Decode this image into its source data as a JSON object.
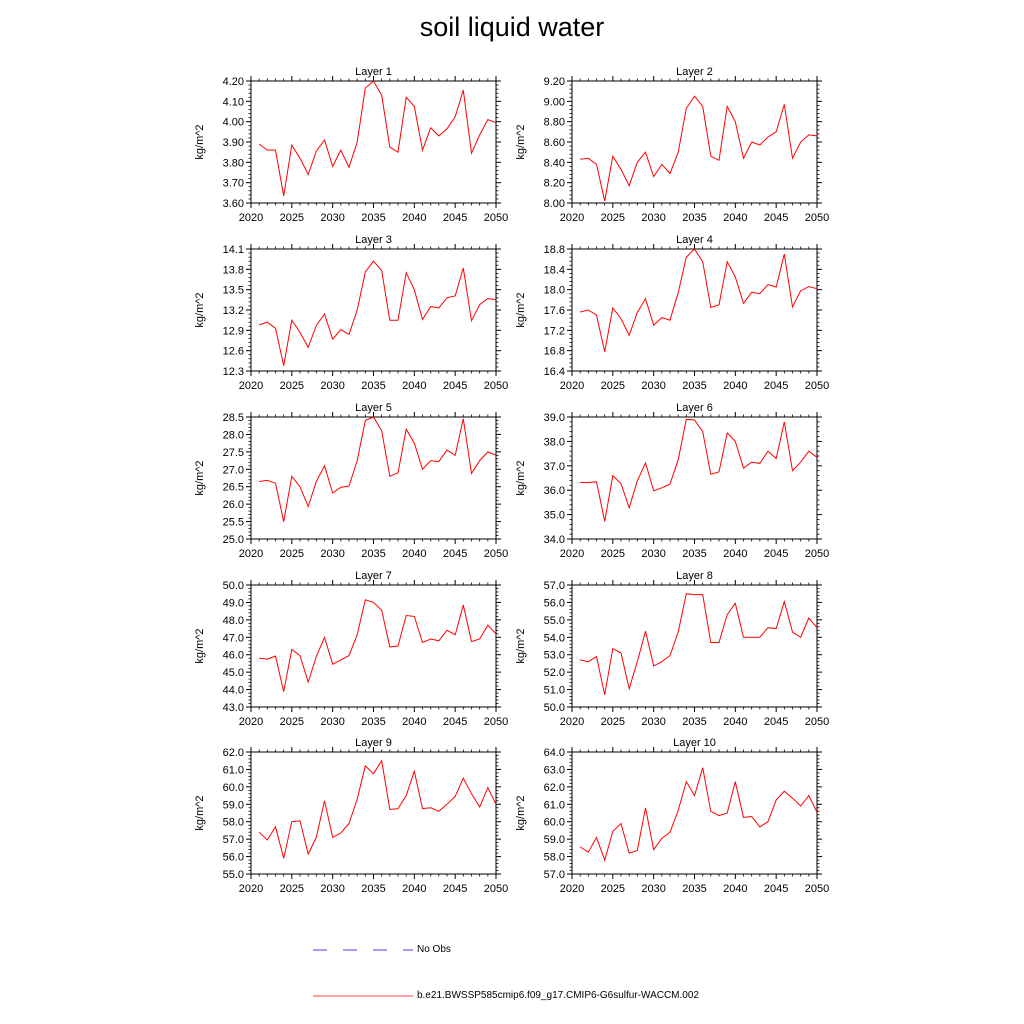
{
  "title": "soil liquid water",
  "legend": {
    "no_obs_label": "No Obs",
    "run_label": "b.e21.BWSSP585cmip6.f09_g17.CMIP6-G6sulfur-WACCM.002",
    "no_obs_color": "#0000ff",
    "run_color": "#ff0000"
  },
  "chart_data": [
    {
      "type": "line",
      "title": "Layer 1",
      "ylabel": "kg/m^2",
      "xlim": [
        2020,
        2050
      ],
      "ylim": [
        3.6,
        4.2
      ],
      "yticks": [
        "3.60",
        "3.70",
        "3.80",
        "3.90",
        "4.00",
        "4.10",
        "4.20"
      ],
      "xticks": [
        "2020",
        "2025",
        "2030",
        "2035",
        "2040",
        "2045",
        "2050"
      ],
      "x": [
        2021,
        2022,
        2023,
        2024,
        2025,
        2026,
        2027,
        2028,
        2029,
        2030,
        2031,
        2032,
        2033,
        2034,
        2035,
        2036,
        2037,
        2038,
        2039,
        2040,
        2041,
        2042,
        2043,
        2044,
        2045,
        2046,
        2047,
        2048,
        2049,
        2050
      ],
      "series": [
        {
          "values": [
            3.89,
            3.86,
            3.86,
            3.635,
            3.885,
            3.82,
            3.74,
            3.855,
            3.91,
            3.78,
            3.86,
            3.775,
            3.9,
            4.165,
            4.2,
            4.13,
            3.875,
            3.85,
            4.12,
            4.075,
            3.86,
            3.97,
            3.93,
            3.965,
            4.025,
            4.155,
            3.845,
            3.935,
            4.01,
            3.995
          ],
          "color": "#ff0000"
        }
      ]
    },
    {
      "type": "line",
      "title": "Layer 2",
      "ylabel": "kg/m^2",
      "xlim": [
        2020,
        2050
      ],
      "ylim": [
        8.0,
        9.2
      ],
      "yticks": [
        "8.00",
        "8.20",
        "8.40",
        "8.60",
        "8.80",
        "9.00",
        "9.20"
      ],
      "xticks": [
        "2020",
        "2025",
        "2030",
        "2035",
        "2040",
        "2045",
        "2050"
      ],
      "x": [
        2021,
        2022,
        2023,
        2024,
        2025,
        2026,
        2027,
        2028,
        2029,
        2030,
        2031,
        2032,
        2033,
        2034,
        2035,
        2036,
        2037,
        2038,
        2039,
        2040,
        2041,
        2042,
        2043,
        2044,
        2045,
        2046,
        2047,
        2048,
        2049,
        2050
      ],
      "series": [
        {
          "values": [
            8.43,
            8.44,
            8.38,
            8.02,
            8.46,
            8.33,
            8.17,
            8.4,
            8.5,
            8.26,
            8.38,
            8.29,
            8.5,
            8.93,
            9.05,
            8.95,
            8.46,
            8.42,
            8.95,
            8.8,
            8.44,
            8.6,
            8.57,
            8.65,
            8.7,
            8.97,
            8.44,
            8.6,
            8.67,
            8.66
          ],
          "color": "#ff0000"
        }
      ]
    },
    {
      "type": "line",
      "title": "Layer 3",
      "ylabel": "kg/m^2",
      "xlim": [
        2020,
        2050
      ],
      "ylim": [
        12.3,
        14.1
      ],
      "yticks": [
        "12.3",
        "12.6",
        "12.9",
        "13.2",
        "13.5",
        "13.8",
        "14.1"
      ],
      "xticks": [
        "2020",
        "2025",
        "2030",
        "2035",
        "2040",
        "2045",
        "2050"
      ],
      "x": [
        2021,
        2022,
        2023,
        2024,
        2025,
        2026,
        2027,
        2028,
        2029,
        2030,
        2031,
        2032,
        2033,
        2034,
        2035,
        2036,
        2037,
        2038,
        2039,
        2040,
        2041,
        2042,
        2043,
        2044,
        2045,
        2046,
        2047,
        2048,
        2049,
        2050
      ],
      "series": [
        {
          "values": [
            12.98,
            13.02,
            12.93,
            12.38,
            13.05,
            12.87,
            12.65,
            12.97,
            13.14,
            12.77,
            12.91,
            12.84,
            13.2,
            13.76,
            13.92,
            13.78,
            13.05,
            13.05,
            13.75,
            13.5,
            13.06,
            13.25,
            13.23,
            13.38,
            13.41,
            13.82,
            13.04,
            13.28,
            13.37,
            13.35
          ],
          "color": "#ff0000"
        }
      ]
    },
    {
      "type": "line",
      "title": "Layer 4",
      "ylabel": "kg/m^2",
      "xlim": [
        2020,
        2050
      ],
      "ylim": [
        16.4,
        18.8
      ],
      "yticks": [
        "16.4",
        "16.8",
        "17.2",
        "17.6",
        "18.0",
        "18.4",
        "18.8"
      ],
      "xticks": [
        "2020",
        "2025",
        "2030",
        "2035",
        "2040",
        "2045",
        "2050"
      ],
      "x": [
        2021,
        2022,
        2023,
        2024,
        2025,
        2026,
        2027,
        2028,
        2029,
        2030,
        2031,
        2032,
        2033,
        2034,
        2035,
        2036,
        2037,
        2038,
        2039,
        2040,
        2041,
        2042,
        2043,
        2044,
        2045,
        2046,
        2047,
        2048,
        2049,
        2050
      ],
      "series": [
        {
          "values": [
            17.56,
            17.6,
            17.5,
            16.78,
            17.64,
            17.43,
            17.1,
            17.55,
            17.82,
            17.3,
            17.45,
            17.4,
            17.94,
            18.64,
            18.8,
            18.55,
            17.65,
            17.7,
            18.55,
            18.25,
            17.73,
            17.95,
            17.92,
            18.1,
            18.05,
            18.7,
            17.66,
            17.98,
            18.06,
            18.02
          ],
          "color": "#ff0000"
        }
      ]
    },
    {
      "type": "line",
      "title": "Layer 5",
      "ylabel": "kg/m^2",
      "xlim": [
        2020,
        2050
      ],
      "ylim": [
        25.0,
        28.5
      ],
      "yticks": [
        "25.0",
        "25.5",
        "26.0",
        "26.5",
        "27.0",
        "27.5",
        "28.0",
        "28.5"
      ],
      "xticks": [
        "2020",
        "2025",
        "2030",
        "2035",
        "2040",
        "2045",
        "2050"
      ],
      "x": [
        2021,
        2022,
        2023,
        2024,
        2025,
        2026,
        2027,
        2028,
        2029,
        2030,
        2031,
        2032,
        2033,
        2034,
        2035,
        2036,
        2037,
        2038,
        2039,
        2040,
        2041,
        2042,
        2043,
        2044,
        2045,
        2046,
        2047,
        2048,
        2049,
        2050
      ],
      "series": [
        {
          "values": [
            26.65,
            26.68,
            26.6,
            25.5,
            26.8,
            26.5,
            25.93,
            26.65,
            27.1,
            26.32,
            26.48,
            26.52,
            27.25,
            28.4,
            28.5,
            28.1,
            26.8,
            26.9,
            28.15,
            27.75,
            27.0,
            27.25,
            27.22,
            27.55,
            27.4,
            28.45,
            26.88,
            27.25,
            27.5,
            27.4
          ],
          "color": "#ff0000"
        }
      ]
    },
    {
      "type": "line",
      "title": "Layer 6",
      "ylabel": "kg/m^2",
      "xlim": [
        2020,
        2050
      ],
      "ylim": [
        34.0,
        39.0
      ],
      "yticks": [
        "34.0",
        "35.0",
        "36.0",
        "37.0",
        "38.0",
        "39.0"
      ],
      "xticks": [
        "2020",
        "2025",
        "2030",
        "2035",
        "2040",
        "2045",
        "2050"
      ],
      "x": [
        2021,
        2022,
        2023,
        2024,
        2025,
        2026,
        2027,
        2028,
        2029,
        2030,
        2031,
        2032,
        2033,
        2034,
        2035,
        2036,
        2037,
        2038,
        2039,
        2040,
        2041,
        2042,
        2043,
        2044,
        2045,
        2046,
        2047,
        2048,
        2049,
        2050
      ],
      "series": [
        {
          "values": [
            36.32,
            36.31,
            36.35,
            34.72,
            36.6,
            36.27,
            35.28,
            36.38,
            37.12,
            35.97,
            36.1,
            36.25,
            37.25,
            38.9,
            38.88,
            38.4,
            36.65,
            36.75,
            38.35,
            38.0,
            36.9,
            37.15,
            37.1,
            37.6,
            37.3,
            38.8,
            36.8,
            37.15,
            37.6,
            37.35
          ],
          "color": "#ff0000"
        }
      ]
    },
    {
      "type": "line",
      "title": "Layer 7",
      "ylabel": "kg/m^2",
      "xlim": [
        2020,
        2050
      ],
      "ylim": [
        43.0,
        50.0
      ],
      "yticks": [
        "43.0",
        "44.0",
        "45.0",
        "46.0",
        "47.0",
        "48.0",
        "49.0",
        "50.0"
      ],
      "xticks": [
        "2020",
        "2025",
        "2030",
        "2035",
        "2040",
        "2045",
        "2050"
      ],
      "x": [
        2021,
        2022,
        2023,
        2024,
        2025,
        2026,
        2027,
        2028,
        2029,
        2030,
        2031,
        2032,
        2033,
        2034,
        2035,
        2036,
        2037,
        2038,
        2039,
        2040,
        2041,
        2042,
        2043,
        2044,
        2045,
        2046,
        2047,
        2048,
        2049,
        2050
      ],
      "series": [
        {
          "values": [
            45.8,
            45.75,
            45.92,
            43.88,
            46.3,
            45.95,
            44.43,
            45.9,
            47.0,
            45.45,
            45.7,
            45.95,
            47.15,
            49.15,
            49.0,
            48.55,
            46.45,
            46.5,
            48.25,
            48.2,
            46.7,
            46.9,
            46.8,
            47.4,
            47.15,
            48.85,
            46.75,
            46.9,
            47.7,
            47.2
          ],
          "color": "#ff0000"
        }
      ]
    },
    {
      "type": "line",
      "title": "Layer 8",
      "ylabel": "kg/m^2",
      "xlim": [
        2020,
        2050
      ],
      "ylim": [
        50.0,
        57.0
      ],
      "yticks": [
        "50.0",
        "51.0",
        "52.0",
        "53.0",
        "54.0",
        "55.0",
        "56.0",
        "57.0"
      ],
      "xticks": [
        "2020",
        "2025",
        "2030",
        "2035",
        "2040",
        "2045",
        "2050"
      ],
      "x": [
        2021,
        2022,
        2023,
        2024,
        2025,
        2026,
        2027,
        2028,
        2029,
        2030,
        2031,
        2032,
        2033,
        2034,
        2035,
        2036,
        2037,
        2038,
        2039,
        2040,
        2041,
        2042,
        2043,
        2044,
        2045,
        2046,
        2047,
        2048,
        2049,
        2050
      ],
      "series": [
        {
          "values": [
            52.7,
            52.6,
            52.9,
            50.7,
            53.35,
            53.1,
            51.05,
            52.6,
            54.35,
            52.35,
            52.6,
            52.95,
            54.3,
            56.5,
            56.45,
            56.45,
            53.7,
            53.7,
            55.3,
            55.95,
            54.0,
            54.0,
            54.0,
            54.55,
            54.5,
            56.05,
            54.3,
            54.0,
            55.1,
            54.55
          ],
          "color": "#ff0000"
        }
      ]
    },
    {
      "type": "line",
      "title": "Layer 9",
      "ylabel": "kg/m^2",
      "xlim": [
        2020,
        2050
      ],
      "ylim": [
        55.0,
        62.0
      ],
      "yticks": [
        "55.0",
        "56.0",
        "57.0",
        "58.0",
        "59.0",
        "60.0",
        "61.0",
        "62.0"
      ],
      "xticks": [
        "2020",
        "2025",
        "2030",
        "2035",
        "2040",
        "2045",
        "2050"
      ],
      "x": [
        2021,
        2022,
        2023,
        2024,
        2025,
        2026,
        2027,
        2028,
        2029,
        2030,
        2031,
        2032,
        2033,
        2034,
        2035,
        2036,
        2037,
        2038,
        2039,
        2040,
        2041,
        2042,
        2043,
        2044,
        2045,
        2046,
        2047,
        2048,
        2049,
        2050
      ],
      "series": [
        {
          "values": [
            57.4,
            56.95,
            57.7,
            55.9,
            58.0,
            58.05,
            56.15,
            57.1,
            59.2,
            57.1,
            57.35,
            57.9,
            59.3,
            61.2,
            60.75,
            61.5,
            58.7,
            58.75,
            59.5,
            60.9,
            58.75,
            58.8,
            58.6,
            59.0,
            59.45,
            60.5,
            59.6,
            58.85,
            59.95,
            59.0
          ],
          "color": "#ff0000"
        }
      ]
    },
    {
      "type": "line",
      "title": "Layer 10",
      "ylabel": "kg/m^2",
      "xlim": [
        2020,
        2050
      ],
      "ylim": [
        57.0,
        64.0
      ],
      "yticks": [
        "57.0",
        "58.0",
        "59.0",
        "60.0",
        "61.0",
        "62.0",
        "63.0",
        "64.0"
      ],
      "xticks": [
        "2020",
        "2025",
        "2030",
        "2035",
        "2040",
        "2045",
        "2050"
      ],
      "x": [
        2021,
        2022,
        2023,
        2024,
        2025,
        2026,
        2027,
        2028,
        2029,
        2030,
        2031,
        2032,
        2033,
        2034,
        2035,
        2036,
        2037,
        2038,
        2039,
        2040,
        2041,
        2042,
        2043,
        2044,
        2045,
        2046,
        2047,
        2048,
        2049,
        2050
      ],
      "series": [
        {
          "values": [
            58.55,
            58.25,
            59.1,
            57.8,
            59.45,
            59.9,
            58.2,
            58.35,
            60.8,
            58.4,
            59.05,
            59.4,
            60.65,
            62.3,
            61.5,
            63.1,
            60.6,
            60.35,
            60.5,
            62.3,
            60.25,
            60.3,
            59.7,
            60.0,
            61.25,
            61.75,
            61.35,
            60.9,
            61.5,
            60.55
          ],
          "color": "#ff0000"
        }
      ]
    }
  ]
}
